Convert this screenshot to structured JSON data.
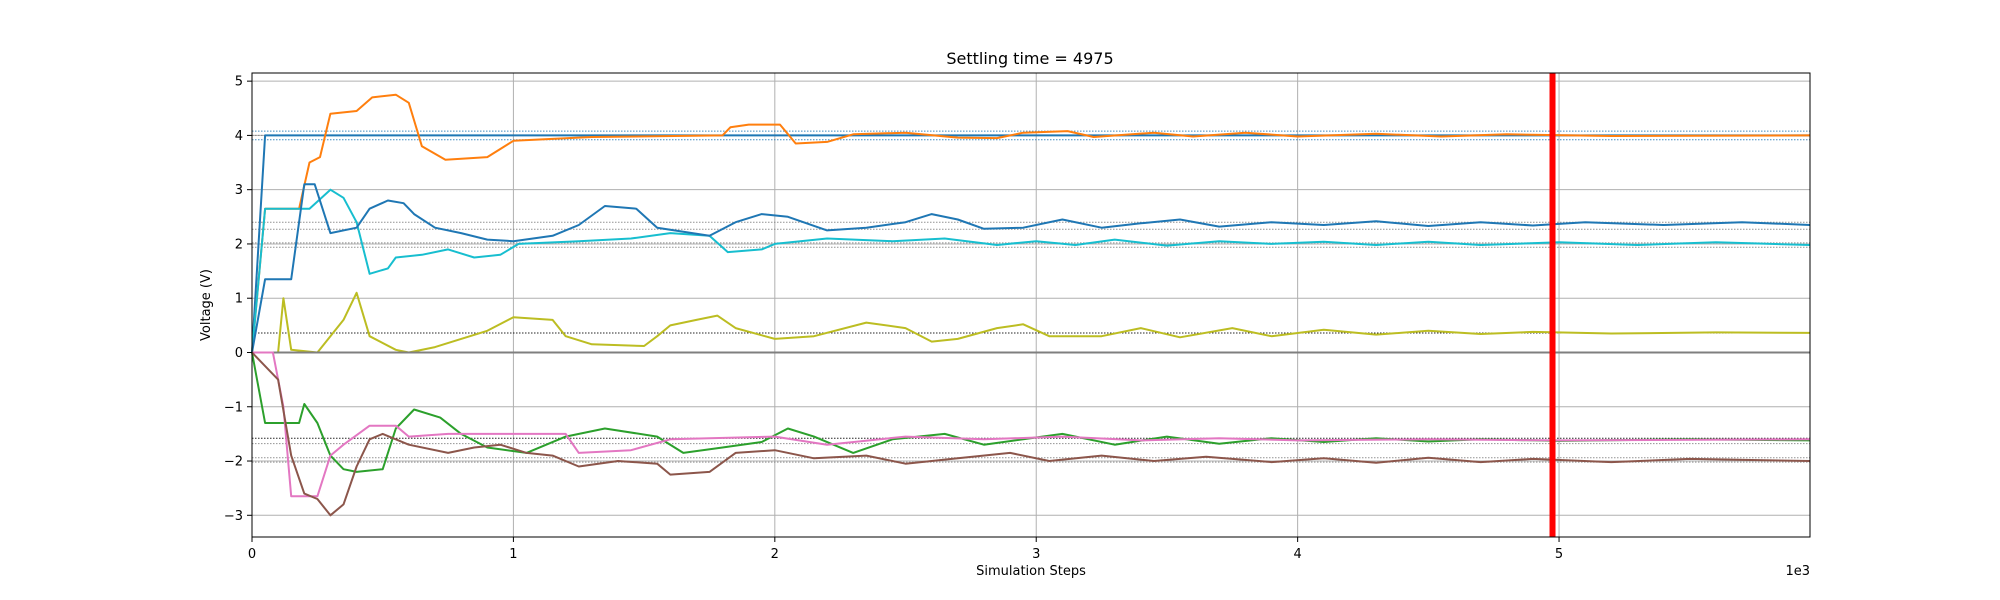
{
  "chart_data": {
    "type": "line",
    "title": "Settling time = 4975",
    "xlabel": "Simulation Steps",
    "ylabel": "Voltage (V)",
    "x_offset_label": "1e3",
    "xlim": [
      0,
      5.96
    ],
    "ylim": [
      -3.4,
      5.15
    ],
    "xticks": [
      0,
      1,
      2,
      3,
      4,
      5
    ],
    "yticks": [
      -3,
      -2,
      -1,
      0,
      1,
      2,
      3,
      4,
      5
    ],
    "grid": true,
    "settling_marker": {
      "x": 4.975,
      "color": "#ff0000"
    },
    "reference_lines": [
      {
        "y": 4.08,
        "color": "#1f77b4",
        "style": "dotted"
      },
      {
        "y": 3.92,
        "color": "#1f77b4",
        "style": "dotted"
      },
      {
        "y": 4.0,
        "color": "#808080",
        "style": "dotted"
      },
      {
        "y": 2.4,
        "color": "#808080",
        "style": "dotted"
      },
      {
        "y": 2.27,
        "color": "#808080",
        "style": "dotted"
      },
      {
        "y": 2.02,
        "color": "#808080",
        "style": "dotted"
      },
      {
        "y": 1.94,
        "color": "#808080",
        "style": "dotted"
      },
      {
        "y": 0.36,
        "color": "#000000",
        "style": "dotted"
      },
      {
        "y": -1.58,
        "color": "#000000",
        "style": "dotted"
      },
      {
        "y": -1.68,
        "color": "#808080",
        "style": "dotted"
      },
      {
        "y": -1.94,
        "color": "#808080",
        "style": "dotted"
      },
      {
        "y": -2.02,
        "color": "#808080",
        "style": "dotted"
      }
    ],
    "series": [
      {
        "color": "#1f77b4",
        "points": [
          [
            0,
            0
          ],
          [
            0.05,
            4.0
          ],
          [
            5.96,
            4.0
          ]
        ]
      },
      {
        "color": "#ff7f0e",
        "points": [
          [
            0,
            0
          ],
          [
            0.05,
            2.65
          ],
          [
            0.18,
            2.65
          ],
          [
            0.22,
            3.5
          ],
          [
            0.26,
            3.6
          ],
          [
            0.3,
            4.4
          ],
          [
            0.4,
            4.45
          ],
          [
            0.46,
            4.7
          ],
          [
            0.55,
            4.75
          ],
          [
            0.6,
            4.6
          ],
          [
            0.65,
            3.8
          ],
          [
            0.74,
            3.55
          ],
          [
            0.9,
            3.6
          ],
          [
            0.95,
            3.75
          ],
          [
            1.0,
            3.9
          ],
          [
            1.3,
            3.97
          ],
          [
            1.8,
            4.0
          ],
          [
            1.83,
            4.15
          ],
          [
            1.9,
            4.2
          ],
          [
            2.02,
            4.2
          ],
          [
            2.08,
            3.85
          ],
          [
            2.2,
            3.88
          ],
          [
            2.3,
            4.02
          ],
          [
            2.5,
            4.05
          ],
          [
            2.7,
            3.96
          ],
          [
            2.85,
            3.95
          ],
          [
            2.95,
            4.05
          ],
          [
            3.12,
            4.08
          ],
          [
            3.22,
            3.97
          ],
          [
            3.45,
            4.05
          ],
          [
            3.6,
            3.98
          ],
          [
            3.8,
            4.05
          ],
          [
            4.0,
            3.98
          ],
          [
            4.3,
            4.03
          ],
          [
            4.55,
            3.98
          ],
          [
            4.8,
            4.02
          ],
          [
            5.2,
            3.99
          ],
          [
            5.96,
            4.0
          ]
        ]
      },
      {
        "color": "#17becf",
        "points": [
          [
            0,
            0
          ],
          [
            0.05,
            2.65
          ],
          [
            0.22,
            2.65
          ],
          [
            0.3,
            3.0
          ],
          [
            0.35,
            2.85
          ],
          [
            0.4,
            2.4
          ],
          [
            0.45,
            1.45
          ],
          [
            0.52,
            1.55
          ],
          [
            0.55,
            1.75
          ],
          [
            0.65,
            1.8
          ],
          [
            0.75,
            1.9
          ],
          [
            0.85,
            1.75
          ],
          [
            0.95,
            1.8
          ],
          [
            1.02,
            2.0
          ],
          [
            1.25,
            2.05
          ],
          [
            1.45,
            2.1
          ],
          [
            1.6,
            2.2
          ],
          [
            1.75,
            2.15
          ],
          [
            1.82,
            1.85
          ],
          [
            1.95,
            1.9
          ],
          [
            2.0,
            2.0
          ],
          [
            2.2,
            2.1
          ],
          [
            2.45,
            2.05
          ],
          [
            2.65,
            2.1
          ],
          [
            2.85,
            1.98
          ],
          [
            3.0,
            2.05
          ],
          [
            3.15,
            1.98
          ],
          [
            3.3,
            2.08
          ],
          [
            3.5,
            1.97
          ],
          [
            3.7,
            2.05
          ],
          [
            3.9,
            2.0
          ],
          [
            4.1,
            2.04
          ],
          [
            4.3,
            1.98
          ],
          [
            4.5,
            2.04
          ],
          [
            4.7,
            1.98
          ],
          [
            5.0,
            2.03
          ],
          [
            5.3,
            1.98
          ],
          [
            5.6,
            2.03
          ],
          [
            5.96,
            1.98
          ]
        ]
      },
      {
        "color": "#1f77b4",
        "points": [
          [
            0,
            0
          ],
          [
            0.05,
            1.35
          ],
          [
            0.15,
            1.35
          ],
          [
            0.2,
            3.1
          ],
          [
            0.24,
            3.1
          ],
          [
            0.3,
            2.2
          ],
          [
            0.4,
            2.3
          ],
          [
            0.45,
            2.65
          ],
          [
            0.52,
            2.8
          ],
          [
            0.58,
            2.75
          ],
          [
            0.62,
            2.55
          ],
          [
            0.7,
            2.3
          ],
          [
            0.8,
            2.2
          ],
          [
            0.9,
            2.08
          ],
          [
            1.0,
            2.05
          ],
          [
            1.15,
            2.15
          ],
          [
            1.25,
            2.35
          ],
          [
            1.35,
            2.7
          ],
          [
            1.47,
            2.65
          ],
          [
            1.55,
            2.3
          ],
          [
            1.75,
            2.15
          ],
          [
            1.85,
            2.4
          ],
          [
            1.95,
            2.55
          ],
          [
            2.05,
            2.5
          ],
          [
            2.2,
            2.25
          ],
          [
            2.35,
            2.3
          ],
          [
            2.5,
            2.4
          ],
          [
            2.6,
            2.55
          ],
          [
            2.7,
            2.45
          ],
          [
            2.8,
            2.28
          ],
          [
            2.95,
            2.3
          ],
          [
            3.1,
            2.45
          ],
          [
            3.25,
            2.3
          ],
          [
            3.4,
            2.38
          ],
          [
            3.55,
            2.45
          ],
          [
            3.7,
            2.32
          ],
          [
            3.9,
            2.4
          ],
          [
            4.1,
            2.35
          ],
          [
            4.3,
            2.42
          ],
          [
            4.5,
            2.33
          ],
          [
            4.7,
            2.4
          ],
          [
            4.9,
            2.34
          ],
          [
            5.1,
            2.4
          ],
          [
            5.4,
            2.35
          ],
          [
            5.7,
            2.4
          ],
          [
            5.96,
            2.35
          ]
        ]
      },
      {
        "color": "#bcbd22",
        "points": [
          [
            0,
            0
          ],
          [
            0.1,
            0
          ],
          [
            0.12,
            1.0
          ],
          [
            0.15,
            0.05
          ],
          [
            0.25,
            0
          ],
          [
            0.3,
            0.3
          ],
          [
            0.35,
            0.6
          ],
          [
            0.4,
            1.1
          ],
          [
            0.45,
            0.3
          ],
          [
            0.55,
            0.05
          ],
          [
            0.6,
            0.0
          ],
          [
            0.7,
            0.1
          ],
          [
            0.8,
            0.25
          ],
          [
            0.9,
            0.4
          ],
          [
            1.0,
            0.65
          ],
          [
            1.15,
            0.6
          ],
          [
            1.2,
            0.3
          ],
          [
            1.3,
            0.15
          ],
          [
            1.5,
            0.12
          ],
          [
            1.55,
            0.3
          ],
          [
            1.6,
            0.5
          ],
          [
            1.7,
            0.6
          ],
          [
            1.78,
            0.68
          ],
          [
            1.85,
            0.45
          ],
          [
            2.0,
            0.25
          ],
          [
            2.15,
            0.3
          ],
          [
            2.35,
            0.55
          ],
          [
            2.5,
            0.45
          ],
          [
            2.6,
            0.2
          ],
          [
            2.7,
            0.25
          ],
          [
            2.85,
            0.45
          ],
          [
            2.95,
            0.52
          ],
          [
            3.05,
            0.3
          ],
          [
            3.25,
            0.3
          ],
          [
            3.4,
            0.45
          ],
          [
            3.55,
            0.28
          ],
          [
            3.75,
            0.45
          ],
          [
            3.9,
            0.3
          ],
          [
            4.1,
            0.42
          ],
          [
            4.3,
            0.33
          ],
          [
            4.5,
            0.4
          ],
          [
            4.7,
            0.34
          ],
          [
            4.9,
            0.38
          ],
          [
            5.2,
            0.35
          ],
          [
            5.6,
            0.37
          ],
          [
            5.96,
            0.36
          ]
        ]
      },
      {
        "color": "#7f7f7f",
        "points": [
          [
            0,
            0
          ],
          [
            5.96,
            0
          ]
        ]
      },
      {
        "color": "#2ca02c",
        "points": [
          [
            0,
            0
          ],
          [
            0.05,
            -1.3
          ],
          [
            0.18,
            -1.3
          ],
          [
            0.2,
            -0.95
          ],
          [
            0.25,
            -1.3
          ],
          [
            0.3,
            -1.9
          ],
          [
            0.35,
            -2.15
          ],
          [
            0.4,
            -2.2
          ],
          [
            0.5,
            -2.15
          ],
          [
            0.55,
            -1.4
          ],
          [
            0.62,
            -1.05
          ],
          [
            0.72,
            -1.2
          ],
          [
            0.8,
            -1.5
          ],
          [
            0.9,
            -1.75
          ],
          [
            1.05,
            -1.85
          ],
          [
            1.2,
            -1.55
          ],
          [
            1.35,
            -1.4
          ],
          [
            1.55,
            -1.55
          ],
          [
            1.65,
            -1.85
          ],
          [
            1.8,
            -1.75
          ],
          [
            1.95,
            -1.65
          ],
          [
            2.05,
            -1.4
          ],
          [
            2.15,
            -1.55
          ],
          [
            2.3,
            -1.85
          ],
          [
            2.45,
            -1.6
          ],
          [
            2.65,
            -1.5
          ],
          [
            2.8,
            -1.7
          ],
          [
            2.95,
            -1.6
          ],
          [
            3.1,
            -1.5
          ],
          [
            3.3,
            -1.7
          ],
          [
            3.5,
            -1.55
          ],
          [
            3.7,
            -1.68
          ],
          [
            3.9,
            -1.58
          ],
          [
            4.1,
            -1.65
          ],
          [
            4.3,
            -1.58
          ],
          [
            4.5,
            -1.64
          ],
          [
            4.7,
            -1.6
          ],
          [
            5.0,
            -1.63
          ],
          [
            5.5,
            -1.6
          ],
          [
            5.96,
            -1.62
          ]
        ]
      },
      {
        "color": "#e377c2",
        "points": [
          [
            0,
            0
          ],
          [
            0.08,
            0
          ],
          [
            0.12,
            -1.0
          ],
          [
            0.15,
            -2.65
          ],
          [
            0.25,
            -2.65
          ],
          [
            0.3,
            -1.9
          ],
          [
            0.35,
            -1.7
          ],
          [
            0.45,
            -1.35
          ],
          [
            0.55,
            -1.35
          ],
          [
            0.6,
            -1.55
          ],
          [
            0.75,
            -1.5
          ],
          [
            0.9,
            -1.5
          ],
          [
            1.2,
            -1.5
          ],
          [
            1.25,
            -1.85
          ],
          [
            1.45,
            -1.8
          ],
          [
            1.6,
            -1.6
          ],
          [
            2.0,
            -1.55
          ],
          [
            2.2,
            -1.7
          ],
          [
            2.5,
            -1.55
          ],
          [
            2.8,
            -1.6
          ],
          [
            3.1,
            -1.55
          ],
          [
            3.4,
            -1.62
          ],
          [
            3.7,
            -1.58
          ],
          [
            4.0,
            -1.62
          ],
          [
            4.5,
            -1.6
          ],
          [
            5.0,
            -1.62
          ],
          [
            5.96,
            -1.6
          ]
        ]
      },
      {
        "color": "#8c564b",
        "points": [
          [
            0,
            0
          ],
          [
            0.1,
            -0.5
          ],
          [
            0.15,
            -1.9
          ],
          [
            0.2,
            -2.6
          ],
          [
            0.25,
            -2.7
          ],
          [
            0.3,
            -3.0
          ],
          [
            0.35,
            -2.8
          ],
          [
            0.4,
            -2.1
          ],
          [
            0.45,
            -1.6
          ],
          [
            0.5,
            -1.5
          ],
          [
            0.6,
            -1.7
          ],
          [
            0.75,
            -1.85
          ],
          [
            0.85,
            -1.75
          ],
          [
            0.95,
            -1.7
          ],
          [
            1.05,
            -1.85
          ],
          [
            1.15,
            -1.9
          ],
          [
            1.25,
            -2.1
          ],
          [
            1.4,
            -2.0
          ],
          [
            1.55,
            -2.05
          ],
          [
            1.6,
            -2.25
          ],
          [
            1.75,
            -2.2
          ],
          [
            1.85,
            -1.85
          ],
          [
            2.0,
            -1.8
          ],
          [
            2.15,
            -1.95
          ],
          [
            2.35,
            -1.9
          ],
          [
            2.5,
            -2.05
          ],
          [
            2.7,
            -1.95
          ],
          [
            2.9,
            -1.85
          ],
          [
            3.05,
            -2.0
          ],
          [
            3.25,
            -1.9
          ],
          [
            3.45,
            -2.0
          ],
          [
            3.65,
            -1.92
          ],
          [
            3.9,
            -2.02
          ],
          [
            4.1,
            -1.95
          ],
          [
            4.3,
            -2.03
          ],
          [
            4.5,
            -1.94
          ],
          [
            4.7,
            -2.02
          ],
          [
            4.9,
            -1.96
          ],
          [
            5.2,
            -2.02
          ],
          [
            5.5,
            -1.96
          ],
          [
            5.96,
            -2.0
          ]
        ]
      }
    ]
  }
}
